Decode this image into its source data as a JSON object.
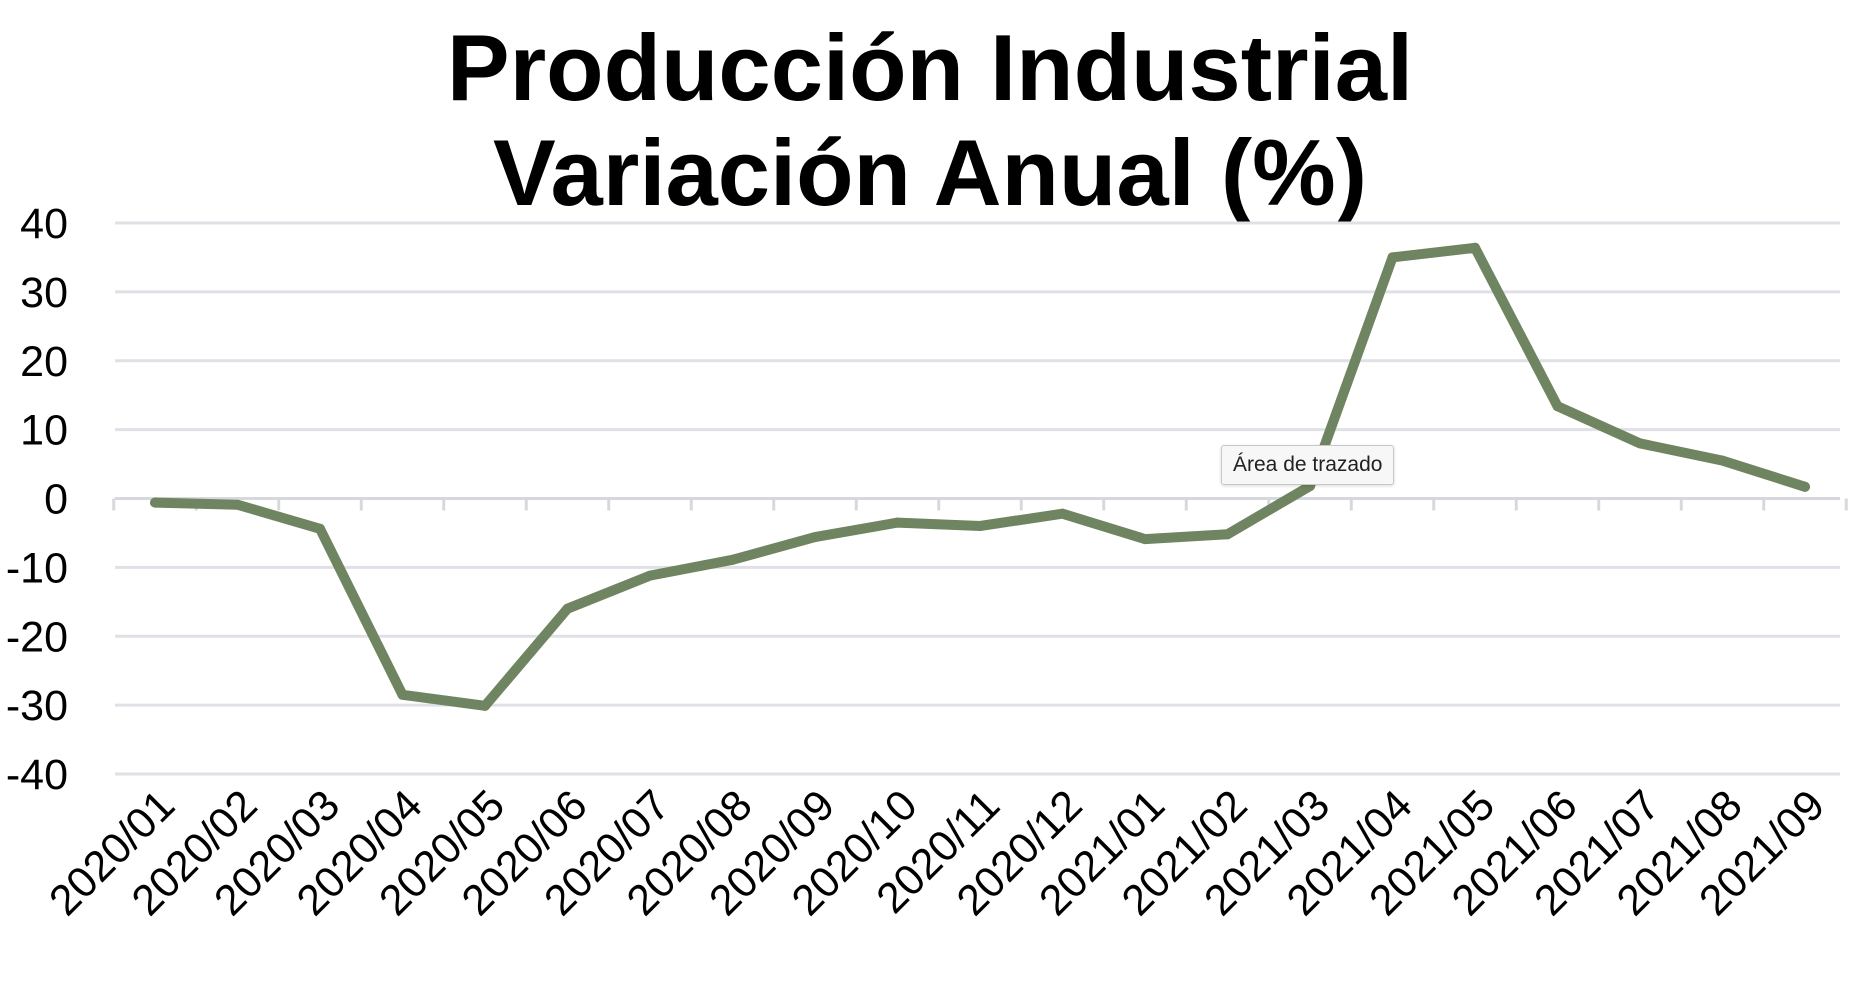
{
  "chart_data": {
    "type": "line",
    "title_lines": [
      "Producción Industrial",
      "Variación Anual (%)"
    ],
    "xlabel": "",
    "ylabel": "",
    "ylim": [
      -40,
      40
    ],
    "yticks": [
      40,
      30,
      20,
      10,
      0,
      -10,
      -20,
      -30,
      -40
    ],
    "grid": true,
    "categories": [
      "2020/01",
      "2020/02",
      "2020/03",
      "2020/04",
      "2020/05",
      "2020/06",
      "2020/07",
      "2020/08",
      "2020/09",
      "2020/10",
      "2020/11",
      "2020/12",
      "2021/01",
      "2021/02",
      "2021/03",
      "2021/04",
      "2021/05",
      "2021/06",
      "2021/07",
      "2021/08",
      "2021/09"
    ],
    "series": [
      {
        "color": "#6f8460",
        "values": [
          -0.6,
          -0.9,
          -4.4,
          -28.5,
          -30.1,
          -16.0,
          -11.2,
          -8.9,
          -5.6,
          -3.5,
          -4.0,
          -2.2,
          -5.9,
          -5.2,
          1.8,
          35.0,
          36.4,
          13.4,
          8.0,
          5.5,
          1.7
        ]
      }
    ],
    "colors": {
      "line": "#6f8460",
      "grid": "#dfe1e6",
      "axis": "#d6d8dd"
    }
  },
  "tooltip": {
    "label": "Área de trazado"
  }
}
